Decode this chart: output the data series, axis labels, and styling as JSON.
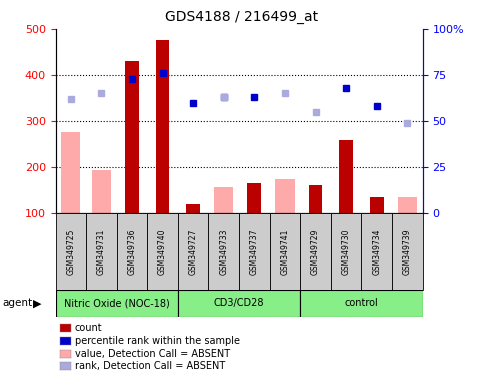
{
  "title": "GDS4188 / 216499_at",
  "samples": [
    "GSM349725",
    "GSM349731",
    "GSM349736",
    "GSM349740",
    "GSM349727",
    "GSM349733",
    "GSM349737",
    "GSM349741",
    "GSM349729",
    "GSM349730",
    "GSM349734",
    "GSM349739"
  ],
  "bar_values": [
    null,
    null,
    430,
    475,
    120,
    null,
    165,
    null,
    160,
    258,
    135,
    null
  ],
  "bar_absent_values": [
    275,
    193,
    null,
    null,
    null,
    157,
    null,
    173,
    null,
    null,
    null,
    135
  ],
  "rank_present": [
    null,
    null,
    73,
    76,
    60,
    63,
    63,
    null,
    null,
    68,
    58,
    null
  ],
  "rank_absent": [
    62,
    65,
    null,
    null,
    null,
    63,
    null,
    65,
    55,
    null,
    null,
    49
  ],
  "ylim_left": [
    100,
    500
  ],
  "ylim_right": [
    0,
    100
  ],
  "yticks_left": [
    100,
    200,
    300,
    400,
    500
  ],
  "yticks_right": [
    0,
    25,
    50,
    75,
    100
  ],
  "bar_color": "#bb0000",
  "bar_absent_color": "#ffaaaa",
  "rank_present_color": "#0000cc",
  "rank_absent_color": "#aaaadd",
  "background_labels": "#cccccc",
  "background_groups": "#88ee88",
  "group_spans": [
    [
      0,
      4,
      "Nitric Oxide (NOC-18)"
    ],
    [
      4,
      8,
      "CD3/CD28"
    ],
    [
      8,
      12,
      "control"
    ]
  ],
  "legend_items": [
    {
      "color": "#bb0000",
      "label": "count"
    },
    {
      "color": "#0000cc",
      "label": "percentile rank within the sample"
    },
    {
      "color": "#ffaaaa",
      "label": "value, Detection Call = ABSENT"
    },
    {
      "color": "#aaaadd",
      "label": "rank, Detection Call = ABSENT"
    }
  ]
}
